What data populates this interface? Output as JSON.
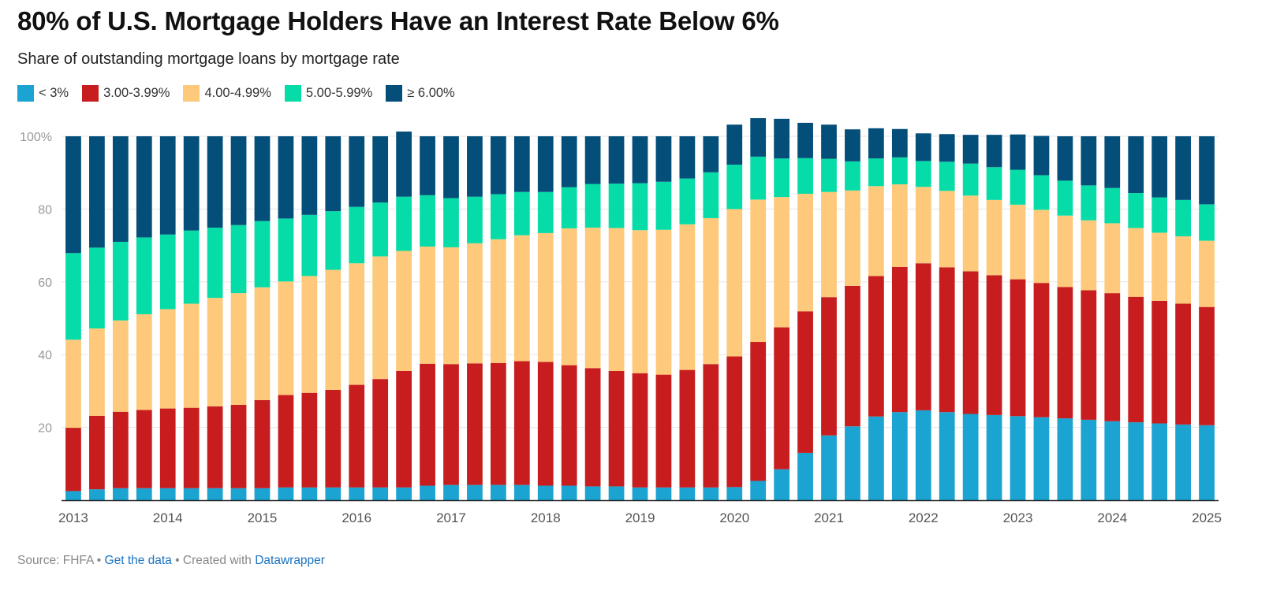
{
  "title": "80% of U.S. Mortgage Holders Have an Interest Rate Below 6%",
  "subtitle": "Share of outstanding mortgage loans by mortgage rate",
  "colors": {
    "below3": "#1ba3d1",
    "r3": "#c81d1f",
    "r4": "#fec97a",
    "r5": "#06dca7",
    "r6": "#044e7a",
    "grid": "#e6e6e6",
    "axis": "#222222",
    "tick_text": "#999999",
    "xtick_text": "#555555"
  },
  "footer": {
    "source": "Source: FHFA",
    "sep1": " • ",
    "get_data": "Get the data",
    "sep2": " • ",
    "created": "Created with ",
    "datawrapper": "Datawrapper"
  },
  "chart_data": {
    "type": "bar",
    "stacked": true,
    "ylim": [
      0,
      100
    ],
    "yticks": [
      20,
      40,
      60,
      80,
      100
    ],
    "ytick_labels": [
      "20",
      "40",
      "60",
      "80",
      "100%"
    ],
    "xtick_labels": [
      "2013",
      "2014",
      "2015",
      "2016",
      "2017",
      "2018",
      "2019",
      "2020",
      "2021",
      "2022",
      "2023",
      "2024",
      "2025"
    ],
    "grid": true,
    "legend_position": "top-left",
    "categories": [
      "2013 Q1",
      "2013 Q2",
      "2013 Q3",
      "2013 Q4",
      "2014 Q1",
      "2014 Q2",
      "2014 Q3",
      "2014 Q4",
      "2015 Q1",
      "2015 Q2",
      "2015 Q3",
      "2015 Q4",
      "2016 Q1",
      "2016 Q2",
      "2016 Q3",
      "2016 Q4",
      "2017 Q1",
      "2017 Q2",
      "2017 Q3",
      "2017 Q4",
      "2018 Q1",
      "2018 Q2",
      "2018 Q3",
      "2018 Q4",
      "2019 Q1",
      "2019 Q2",
      "2019 Q3",
      "2019 Q4",
      "2020 Q1",
      "2020 Q2",
      "2020 Q3",
      "2020 Q4",
      "2021 Q1",
      "2021 Q2",
      "2021 Q3",
      "2021 Q4",
      "2022 Q1",
      "2022 Q2",
      "2022 Q3",
      "2022 Q4",
      "2023 Q1",
      "2023 Q2",
      "2023 Q3",
      "2023 Q4",
      "2024 Q1",
      "2024 Q2",
      "2024 Q3",
      "2024 Q4",
      "2025 Q1"
    ],
    "series": [
      {
        "name": "< 3%",
        "color_key": "below3",
        "values": [
          2.5,
          3.0,
          3.3,
          3.3,
          3.3,
          3.3,
          3.3,
          3.3,
          3.3,
          3.5,
          3.5,
          3.5,
          3.5,
          3.5,
          3.5,
          4.0,
          4.2,
          4.2,
          4.2,
          4.2,
          4.0,
          4.0,
          3.8,
          3.8,
          3.5,
          3.5,
          3.5,
          3.5,
          3.6,
          5.3,
          8.5,
          13.0,
          17.8,
          20.3,
          23.0,
          24.2,
          24.7,
          24.2,
          23.7,
          23.4,
          23.1,
          22.8,
          22.5,
          22.1,
          21.7,
          21.4,
          21.1,
          20.8,
          20.6
        ]
      },
      {
        "name": "3.00-3.99%",
        "color_key": "r3",
        "values": [
          17.4,
          20.2,
          21.0,
          21.5,
          21.9,
          22.1,
          22.5,
          22.9,
          24.2,
          25.4,
          26.0,
          26.8,
          28.2,
          29.8,
          32.0,
          33.5,
          33.2,
          33.4,
          33.5,
          34.0,
          34.0,
          33.1,
          32.5,
          31.7,
          31.4,
          31.0,
          32.3,
          33.9,
          35.9,
          38.2,
          39.0,
          38.9,
          38.0,
          38.6,
          38.6,
          39.9,
          40.4,
          39.8,
          39.2,
          38.4,
          37.6,
          36.9,
          36.1,
          35.6,
          35.2,
          34.5,
          33.7,
          33.2,
          32.5
        ]
      },
      {
        "name": "4.00-4.99%",
        "color_key": "r4",
        "values": [
          24.2,
          24.0,
          25.1,
          26.3,
          27.3,
          28.6,
          29.8,
          30.7,
          31.0,
          31.2,
          32.1,
          33.0,
          33.4,
          33.7,
          33.0,
          32.2,
          32.1,
          33.0,
          34.0,
          34.6,
          35.4,
          37.6,
          38.6,
          39.3,
          39.3,
          39.8,
          40.0,
          40.1,
          40.5,
          39.1,
          35.8,
          32.3,
          28.9,
          26.2,
          24.7,
          22.7,
          21.0,
          21.0,
          20.8,
          20.7,
          20.5,
          20.1,
          19.6,
          19.2,
          19.2,
          18.9,
          18.7,
          18.5,
          18.2
        ]
      },
      {
        "name": "5.00-5.99%",
        "color_key": "r5",
        "values": [
          23.8,
          22.2,
          21.6,
          21.1,
          20.5,
          20.1,
          19.3,
          18.7,
          18.2,
          17.3,
          16.8,
          16.1,
          15.5,
          14.8,
          14.9,
          14.1,
          13.5,
          12.8,
          12.4,
          11.9,
          11.3,
          11.3,
          12.0,
          12.2,
          12.9,
          13.2,
          12.6,
          12.6,
          12.2,
          11.8,
          10.6,
          9.8,
          9.1,
          8.0,
          7.6,
          7.4,
          7.1,
          8.0,
          8.8,
          9.0,
          9.6,
          9.5,
          9.6,
          9.6,
          9.7,
          9.6,
          9.7,
          10.0,
          10.0
        ]
      },
      {
        "name": "≥ 6.00%",
        "color_key": "r6",
        "values": [
          32.1,
          30.6,
          29.0,
          27.8,
          27.0,
          25.9,
          25.1,
          24.4,
          23.3,
          22.6,
          21.6,
          20.6,
          19.4,
          18.2,
          17.9,
          16.2,
          17.0,
          16.6,
          15.9,
          15.3,
          15.3,
          14.0,
          13.1,
          13.0,
          12.9,
          12.5,
          11.6,
          9.9,
          11.0,
          10.6,
          10.9,
          9.7,
          9.4,
          8.8,
          8.3,
          7.8,
          7.6,
          7.6,
          7.9,
          8.9,
          9.7,
          10.8,
          12.2,
          13.5,
          14.2,
          15.6,
          16.8,
          17.5,
          18.7
        ]
      }
    ]
  }
}
